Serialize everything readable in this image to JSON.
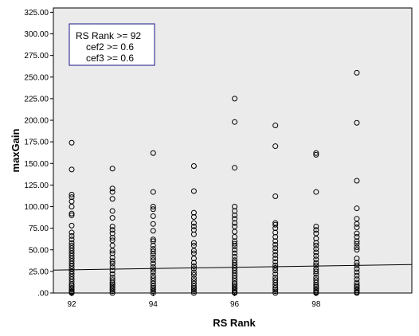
{
  "chart_data": {
    "type": "scatter",
    "xlabel": "RS Rank",
    "ylabel": "maxGain",
    "x_ticks": [
      "92",
      "94",
      "96",
      "98"
    ],
    "y_ticks": [
      ".00",
      "25.00",
      "50.00",
      "75.00",
      "100.00",
      "125.00",
      "150.00",
      "175.00",
      "200.00",
      "225.00",
      "250.00",
      "275.00",
      "300.00",
      "325.00"
    ],
    "xlim": [
      91.55,
      100.35
    ],
    "ylim": [
      0,
      330
    ],
    "grid": false,
    "background": "#ebebeb",
    "marker_color": "#000000",
    "legend_box": {
      "lines": [
        "RS Rank >= 92",
        "cef2 >= 0.6",
        "cef3 >= 0.6"
      ],
      "placement": "top-left",
      "border_color": "#3b3b9a"
    },
    "fit_line": {
      "intercept_at_xmin": 26.5,
      "value_at_xmax": 33.0
    },
    "series": [
      {
        "x": 92,
        "y": [
          174,
          143,
          114,
          111,
          106,
          100,
          92,
          90,
          78,
          70,
          66,
          62,
          58,
          55,
          52,
          49,
          46,
          43,
          40,
          37,
          34,
          31,
          28,
          25,
          22,
          19,
          16,
          13,
          10,
          8,
          6,
          4,
          2,
          1,
          0
        ]
      },
      {
        "x": 93,
        "y": [
          144,
          121,
          117,
          109,
          95,
          87,
          77,
          73,
          69,
          64,
          61,
          55,
          49,
          46,
          41,
          37,
          34,
          30,
          26,
          22,
          18,
          15,
          12,
          10,
          8,
          6,
          4,
          2,
          0
        ]
      },
      {
        "x": 94,
        "y": [
          162,
          117,
          100,
          97,
          89,
          80,
          72,
          62,
          60,
          55,
          51,
          48,
          45,
          41,
          38,
          34,
          30,
          27,
          24,
          20,
          17,
          14,
          11,
          8,
          6,
          4,
          2,
          0
        ]
      },
      {
        "x": 95,
        "y": [
          147,
          118,
          93,
          88,
          81,
          77,
          73,
          68,
          58,
          55,
          49,
          46,
          40,
          35,
          31,
          28,
          24,
          21,
          17,
          14,
          11,
          8,
          6,
          4,
          2,
          0
        ]
      },
      {
        "x": 96,
        "y": [
          225,
          198,
          145,
          100,
          95,
          90,
          86,
          81,
          77,
          71,
          65,
          60,
          57,
          54,
          50,
          46,
          42,
          38,
          35,
          32,
          29,
          26,
          23,
          20,
          17,
          14,
          11,
          9,
          7,
          5,
          3,
          1,
          0
        ]
      },
      {
        "x": 97,
        "y": [
          194,
          170,
          112,
          81,
          79,
          75,
          70,
          65,
          60,
          56,
          52,
          48,
          44,
          40,
          36,
          32,
          29,
          26,
          22,
          18,
          15,
          12,
          9,
          6,
          4,
          2,
          0
        ]
      },
      {
        "x": 98,
        "y": [
          162,
          160,
          117,
          77,
          73,
          69,
          63,
          58,
          55,
          51,
          47,
          43,
          39,
          35,
          32,
          28,
          25,
          22,
          18,
          15,
          12,
          9,
          7,
          5,
          3,
          1,
          0
        ]
      },
      {
        "x": 99,
        "y": [
          255,
          197,
          130,
          98,
          86,
          80,
          76,
          69,
          65,
          60,
          57,
          53,
          50,
          40,
          35,
          32,
          28,
          24,
          20,
          16,
          12,
          9,
          7,
          5,
          3,
          1,
          0
        ]
      }
    ]
  }
}
